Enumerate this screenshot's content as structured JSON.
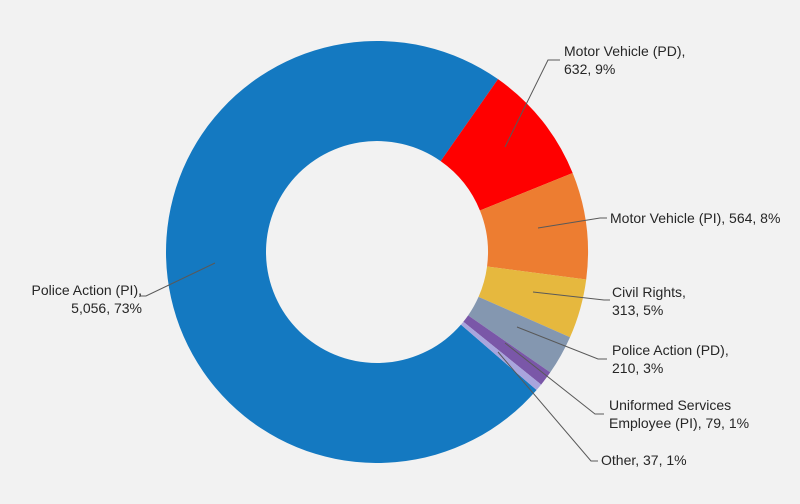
{
  "chart_data": {
    "type": "pie",
    "variant": "donut",
    "title": "",
    "slices": [
      {
        "name": "Police Action (PI)",
        "value": 5056,
        "percent": "73%",
        "color": "#1479c1",
        "label_lines": [
          "Police Action (PI),",
          "5,056, 73%"
        ]
      },
      {
        "name": "Motor Vehicle (PD)",
        "value": 632,
        "percent": "9%",
        "color": "#ff0000",
        "label_lines": [
          "Motor Vehicle (PD),",
          "632, 9%"
        ]
      },
      {
        "name": "Motor Vehicle (PI)",
        "value": 564,
        "percent": "8%",
        "color": "#ed7d31",
        "label_lines": [
          "Motor Vehicle (PI), 564, 8%"
        ]
      },
      {
        "name": "Civil Rights",
        "value": 313,
        "percent": "5%",
        "color": "#e6b83e",
        "label_lines": [
          "Civil Rights,",
          "313, 5%"
        ]
      },
      {
        "name": "Police Action (PD)",
        "value": 210,
        "percent": "3%",
        "color": "#8497b0",
        "label_lines": [
          "Police Action (PD),",
          "210, 3%"
        ]
      },
      {
        "name": "Uniformed Services Employee (PI)",
        "value": 79,
        "percent": "1%",
        "color": "#7a57a8",
        "label_lines": [
          "Uniformed Services",
          "Employee (PI), 79, 1%"
        ]
      },
      {
        "name": "Other",
        "value": 37,
        "percent": "1%",
        "color": "#a9a5dd",
        "label_lines": [
          "Other, 37, 1%"
        ]
      }
    ]
  }
}
